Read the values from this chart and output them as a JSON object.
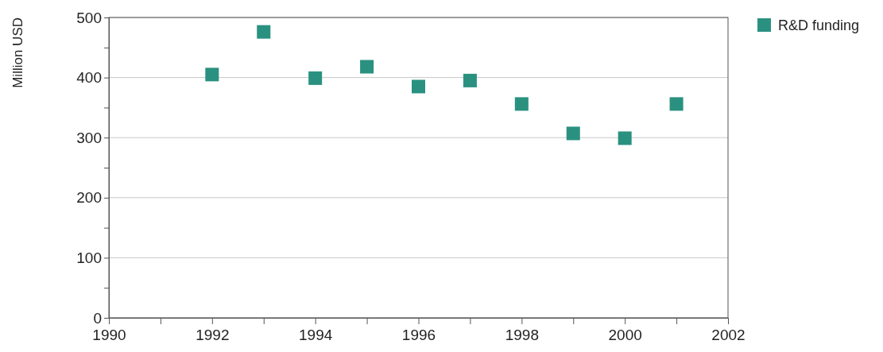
{
  "chart_data": {
    "type": "scatter",
    "ylabel": "Million USD",
    "x": [
      1992,
      1993,
      1994,
      1995,
      1996,
      1997,
      1998,
      1999,
      2000,
      2001
    ],
    "series": [
      {
        "name": "R&D funding",
        "color": "#2a9180",
        "values": [
          405,
          476,
          399,
          418,
          385,
          395,
          356,
          307,
          299,
          356
        ]
      }
    ],
    "xlim": [
      1990,
      2002
    ],
    "xticks": [
      1990,
      {
        "value": 1991,
        "label": null
      },
      1992,
      {
        "value": 1993,
        "label": null
      },
      1994,
      {
        "value": 1995,
        "label": null
      },
      1996,
      {
        "value": 1997,
        "label": null
      },
      1998,
      {
        "value": 1999,
        "label": null
      },
      2000,
      {
        "value": 2001,
        "label": null
      },
      2002
    ],
    "ylim": [
      0,
      500
    ],
    "yticks": [
      0,
      {
        "value": 50,
        "label": null
      },
      100,
      {
        "value": 150,
        "label": null
      },
      200,
      {
        "value": 250,
        "label": null
      },
      300,
      {
        "value": 350,
        "label": null
      },
      400,
      {
        "value": 450,
        "label": null
      },
      500
    ],
    "grid": "y",
    "legend": "top right",
    "marker": "square"
  }
}
